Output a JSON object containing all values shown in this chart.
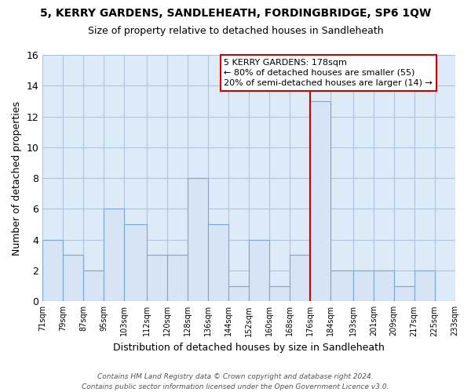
{
  "title": "5, KERRY GARDENS, SANDLEHEATH, FORDINGBRIDGE, SP6 1QW",
  "subtitle": "Size of property relative to detached houses in Sandleheath",
  "xlabel": "Distribution of detached houses by size in Sandleheath",
  "ylabel": "Number of detached properties",
  "bin_edges": [
    71,
    79,
    87,
    95,
    103,
    112,
    120,
    128,
    136,
    144,
    152,
    160,
    168,
    176,
    184,
    193,
    201,
    209,
    217,
    225,
    233
  ],
  "counts": [
    4,
    3,
    2,
    6,
    5,
    3,
    3,
    8,
    5,
    1,
    4,
    1,
    3,
    13,
    2,
    2,
    2,
    1,
    2,
    0
  ],
  "bar_color": "#d6e4f5",
  "bar_edge_color": "#7aa8d4",
  "highlight_bin_index": 13,
  "highlight_line_color": "#cc0000",
  "annotation_title": "5 KERRY GARDENS: 178sqm",
  "annotation_line2": "← 80% of detached houses are smaller (55)",
  "annotation_line3": "20% of semi-detached houses are larger (14) →",
  "tick_labels": [
    "71sqm",
    "79sqm",
    "87sqm",
    "95sqm",
    "103sqm",
    "112sqm",
    "120sqm",
    "128sqm",
    "136sqm",
    "144sqm",
    "152sqm",
    "160sqm",
    "168sqm",
    "176sqm",
    "184sqm",
    "193sqm",
    "201sqm",
    "209sqm",
    "217sqm",
    "225sqm",
    "233sqm"
  ],
  "ylim": [
    0,
    16
  ],
  "yticks": [
    0,
    2,
    4,
    6,
    8,
    10,
    12,
    14,
    16
  ],
  "footer_line1": "Contains HM Land Registry data © Crown copyright and database right 2024.",
  "footer_line2": "Contains public sector information licensed under the Open Government Licence v3.0.",
  "background_color": "#ffffff",
  "plot_bg_color": "#ddeaf8",
  "grid_color": "#b0c4de"
}
